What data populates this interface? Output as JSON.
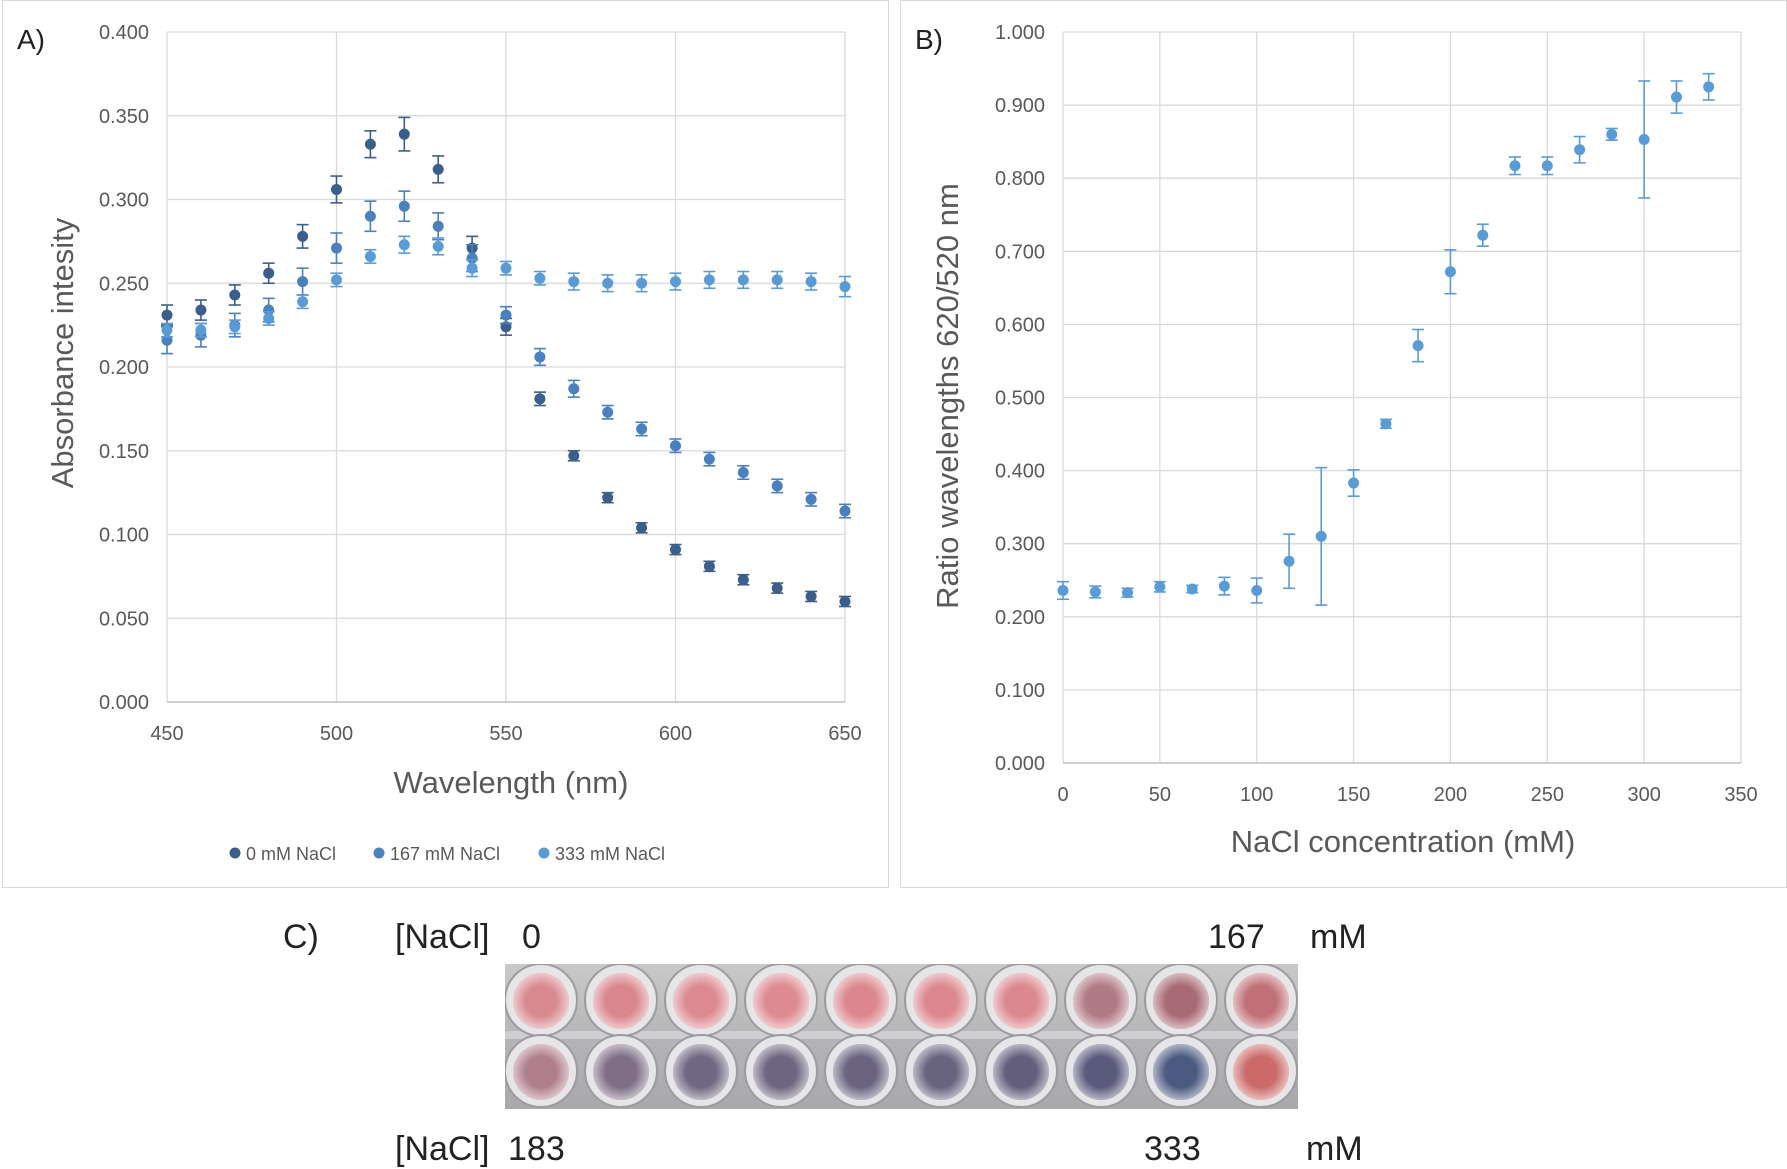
{
  "chart_data": [
    {
      "panel": "A)",
      "type": "scatter",
      "xlabel": "Wavelength (nm)",
      "ylabel": "Absorbance intesity",
      "xlim": [
        450,
        650
      ],
      "ylim": [
        0,
        0.4
      ],
      "x_ticks": [
        "450",
        "500",
        "550",
        "600",
        "650"
      ],
      "y_ticks": [
        "0.000",
        "0.050",
        "0.100",
        "0.150",
        "0.200",
        "0.250",
        "0.300",
        "0.350",
        "0.400"
      ],
      "legend_position": "bottom",
      "x": [
        450,
        460,
        470,
        480,
        490,
        500,
        510,
        520,
        530,
        540,
        550,
        560,
        570,
        580,
        590,
        600,
        610,
        620,
        630,
        640,
        650
      ],
      "series": [
        {
          "name": "0 mM NaCl",
          "color": "#3b5f8a",
          "values": [
            0.231,
            0.234,
            0.243,
            0.256,
            0.278,
            0.306,
            0.333,
            0.339,
            0.318,
            0.271,
            0.224,
            0.181,
            0.147,
            0.122,
            0.104,
            0.091,
            0.081,
            0.073,
            0.068,
            0.063,
            0.06
          ],
          "errors": [
            0.006,
            0.006,
            0.006,
            0.006,
            0.007,
            0.008,
            0.008,
            0.01,
            0.008,
            0.007,
            0.005,
            0.004,
            0.003,
            0.003,
            0.003,
            0.003,
            0.003,
            0.003,
            0.003,
            0.003,
            0.003
          ]
        },
        {
          "name": "167 mM NaCl",
          "color": "#4a80bd",
          "values": [
            0.216,
            0.219,
            0.225,
            0.234,
            0.251,
            0.271,
            0.29,
            0.296,
            0.284,
            0.265,
            0.231,
            0.206,
            0.187,
            0.173,
            0.163,
            0.153,
            0.145,
            0.137,
            0.129,
            0.121,
            0.114
          ],
          "errors": [
            0.008,
            0.007,
            0.007,
            0.007,
            0.008,
            0.009,
            0.009,
            0.009,
            0.008,
            0.008,
            0.005,
            0.005,
            0.005,
            0.004,
            0.004,
            0.004,
            0.004,
            0.004,
            0.004,
            0.004,
            0.004
          ]
        },
        {
          "name": "333 mM NaCl",
          "color": "#5b9bd5",
          "values": [
            0.222,
            0.222,
            0.224,
            0.229,
            0.239,
            0.252,
            0.266,
            0.273,
            0.272,
            0.259,
            0.259,
            0.253,
            0.251,
            0.25,
            0.25,
            0.251,
            0.252,
            0.252,
            0.252,
            0.251,
            0.248
          ],
          "errors": [
            0.004,
            0.004,
            0.004,
            0.004,
            0.004,
            0.004,
            0.004,
            0.005,
            0.005,
            0.005,
            0.004,
            0.004,
            0.005,
            0.005,
            0.005,
            0.005,
            0.005,
            0.005,
            0.005,
            0.005,
            0.006
          ]
        }
      ]
    },
    {
      "panel": "B)",
      "type": "scatter",
      "xlabel": "NaCl concentration (mM)",
      "ylabel": "Ratio wavelengths 620/520 nm",
      "xlim": [
        0,
        350
      ],
      "ylim": [
        0,
        1
      ],
      "x_ticks": [
        "0",
        "50",
        "100",
        "150",
        "200",
        "250",
        "300",
        "350"
      ],
      "y_ticks": [
        "0.000",
        "0.100",
        "0.200",
        "0.300",
        "0.400",
        "0.500",
        "0.600",
        "0.700",
        "0.800",
        "0.900",
        "1.000"
      ],
      "series": [
        {
          "name": "Ratio 620/520",
          "color": "#5b9bd5",
          "x": [
            0,
            16.7,
            33.3,
            50,
            66.7,
            83.3,
            100,
            116.7,
            133.3,
            150,
            166.7,
            183.3,
            200,
            216.7,
            233.3,
            250,
            266.7,
            283.3,
            300,
            316.7,
            333.3
          ],
          "values": [
            0.236,
            0.234,
            0.233,
            0.241,
            0.238,
            0.242,
            0.236,
            0.276,
            0.31,
            0.383,
            0.464,
            0.571,
            0.672,
            0.722,
            0.817,
            0.817,
            0.839,
            0.86,
            0.853,
            0.911,
            0.925
          ],
          "errors": [
            0.012,
            0.008,
            0.006,
            0.007,
            0.005,
            0.012,
            0.017,
            0.037,
            0.094,
            0.018,
            0.006,
            0.022,
            0.03,
            0.015,
            0.012,
            0.012,
            0.018,
            0.008,
            0.08,
            0.022,
            0.018
          ]
        }
      ]
    }
  ],
  "panel_c": {
    "label": "C)",
    "top_row": {
      "prefix": "[NaCl]",
      "start": "0",
      "end": "167",
      "unit": "mM"
    },
    "bottom_row": {
      "prefix": "[NaCl]",
      "start": "183",
      "end": "333",
      "unit": "mM"
    },
    "plate_photo": "96-well plate strip, two rows of ten wells: top row red/pink, bottom row purple/gray with last well red",
    "top_well_colors": [
      "#d88a8f",
      "#d9868c",
      "#dc8a90",
      "#dd8a90",
      "#dc878d",
      "#dc888e",
      "#db888e",
      "#b07a86",
      "#a86a74",
      "#c07076"
    ],
    "bottom_well_colors": [
      "#b07e8c",
      "#7f6e86",
      "#706882",
      "#6e6680",
      "#6a6480",
      "#686480",
      "#625e7c",
      "#5a5a7c",
      "#4a5a80",
      "#cc6a6a"
    ]
  }
}
